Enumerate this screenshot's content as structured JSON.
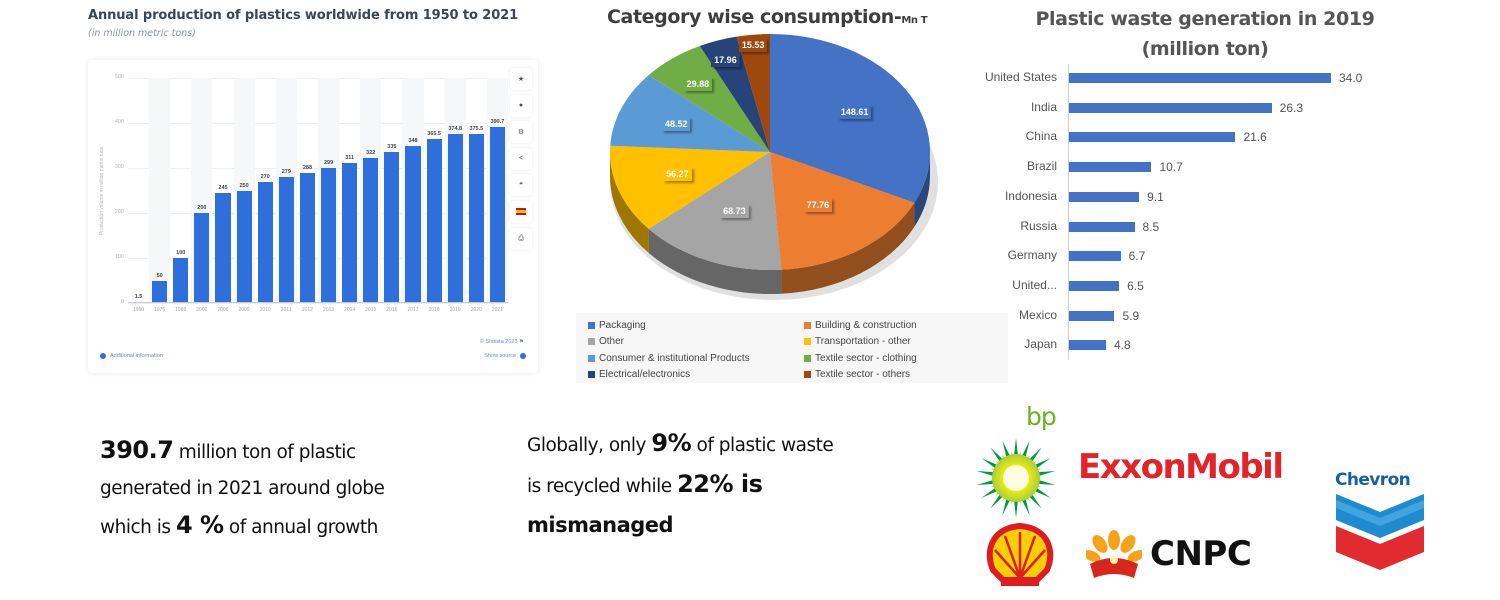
{
  "statista": {
    "title": "Annual production of plastics worldwide from 1950 to 2021",
    "subtitle": "(in million metric tons)",
    "y_axis_label": "Production volume in million metric tons",
    "copyright": "© Statista 2023",
    "additional_info": "Additional information",
    "show_source": "Show source",
    "toolbar_icons": [
      "star-icon",
      "bell-icon",
      "gear-icon",
      "share-icon",
      "quote-icon",
      "flag-icon",
      "print-icon"
    ]
  },
  "pie": {
    "title": "Category wise consumption-",
    "title_unit": "Mn T"
  },
  "hbar": {
    "title_line1": "Plastic waste generation in 2019",
    "title_line2": "(million ton)"
  },
  "text_left": {
    "value": "390.7",
    "line1_rest": " million ton of plastic",
    "line2": "generated in 2021 around globe",
    "line3_pre": "which is ",
    "growth": "4 %",
    "line3_post": " of annual growth"
  },
  "text_middle": {
    "line1_pre": "Globally, only ",
    "recycled_pct": "9%",
    "line1_post": " of plastic waste",
    "line2_pre": "is recycled while ",
    "mismanaged_pct": "22% is",
    "line3": "mismanaged"
  },
  "logos": {
    "bp": "bp",
    "exxon": "ExxonMobil",
    "cnpc": "CNPC",
    "chevron": "Chevron",
    "shell": "Shell"
  },
  "chart_data": [
    {
      "type": "bar",
      "title": "Annual production of plastics worldwide from 1950 to 2021",
      "subtitle": "(in million metric tons)",
      "xlabel": "",
      "ylabel": "Production volume in million metric tons",
      "ylim": [
        0,
        500
      ],
      "yticks": [
        0,
        100,
        200,
        300,
        400,
        500
      ],
      "grid": true,
      "categories": [
        "1950",
        "1976",
        "1989",
        "2002",
        "2008",
        "2009",
        "2010",
        "2011",
        "2012",
        "2013",
        "2014",
        "2015",
        "2016",
        "2017",
        "2018",
        "2019",
        "2020",
        "2021"
      ],
      "values": [
        1.5,
        50,
        100,
        200,
        245,
        250,
        270,
        279,
        288,
        299,
        311,
        322,
        335,
        348,
        365.5,
        374.8,
        375.5,
        390.7
      ],
      "labels": [
        "1.5",
        "50",
        "100",
        "200",
        "245",
        "250",
        "270",
        "279",
        "288",
        "299",
        "311",
        "322",
        "335",
        "348",
        "365.5",
        "374.8",
        "375.5",
        "390.7"
      ],
      "color": "#2f6fdb"
    },
    {
      "type": "pie",
      "title": "Category wise consumption-Mn T",
      "legend_position": "bottom",
      "categories": [
        "Packaging",
        "Building & construction",
        "Other",
        "Transportation - other",
        "Consumer & institutional Products",
        "Textile sector - clothing",
        "Electrical/electronics",
        "Textile sector - others"
      ],
      "values": [
        148.61,
        77.76,
        68.73,
        56.27,
        48.52,
        29.88,
        17.96,
        15.53
      ],
      "colors": [
        "#4472c4",
        "#ed7d31",
        "#a5a5a5",
        "#ffc000",
        "#5b9bd5",
        "#70ad47",
        "#264478",
        "#9e480e"
      ]
    },
    {
      "type": "bar",
      "orientation": "horizontal",
      "title": "Plastic waste generation in 2019 (million ton)",
      "xlabel": "",
      "ylabel": "",
      "grid": false,
      "categories": [
        "United States",
        "India",
        "China",
        "Brazil",
        "Indonesia",
        "Russia",
        "Germany",
        "United...",
        "Mexico",
        "Japan"
      ],
      "values": [
        34.0,
        26.3,
        21.6,
        10.7,
        9.1,
        8.5,
        6.7,
        6.5,
        5.9,
        4.8
      ],
      "labels": [
        "34.0",
        "26.3",
        "21.6",
        "10.7",
        "9.1",
        "8.5",
        "6.7",
        "6.5",
        "5.9",
        "4.8"
      ],
      "color": "#4472c4"
    }
  ]
}
